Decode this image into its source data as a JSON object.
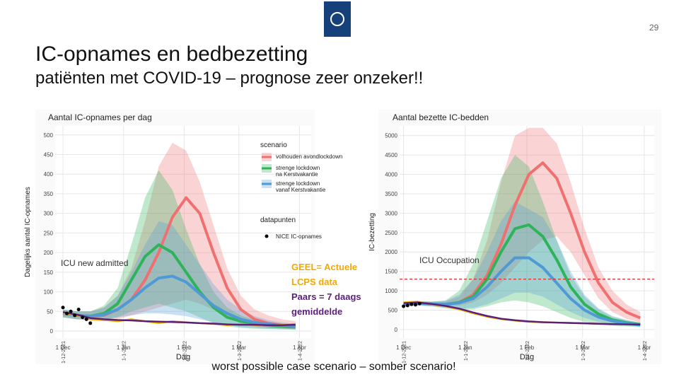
{
  "page": {
    "page_number": "29",
    "title": "IC-opnames en bedbezetting",
    "subtitle": "patiënten met COVID-19 – prognose zeer onzeker!!",
    "footer": "worst possible case scenario – somber scenario!"
  },
  "chart_data": [
    {
      "type": "line",
      "title": "Aantal IC-opnames per dag",
      "xlabel": "Dag",
      "ylabel": "Dagelijks aantal IC-opnames",
      "legend": true,
      "legend_title": "scenario",
      "legend_title_points": "datapunten",
      "annotations": [
        "ICU new admitted",
        "GEEL= Actuele\nLCPS data",
        "Paars = 7 daags\ngemiddelde"
      ],
      "xlim": [
        "2021-11-27",
        "2022-04-07"
      ],
      "ylim": [
        -18,
        523
      ],
      "xticks": [
        {
          "value": "2021-12-01",
          "label": "1 Dec",
          "alt_label": "1-12-2021"
        },
        {
          "value": "2022-01-01",
          "label": "1 Jan",
          "alt_label": "1-1-2022"
        },
        {
          "value": "2022-02-01",
          "label": "1 Feb",
          "alt_label": "1-2-2022"
        },
        {
          "value": "2022-03-01",
          "label": "1 Mar",
          "alt_label": "1-3-2022"
        },
        {
          "value": "2022-04-01",
          "label": "1 Apr",
          "alt_label": "1-4-2022"
        }
      ],
      "yticks": [
        0,
        50,
        100,
        150,
        200,
        250,
        300,
        350,
        400,
        450,
        500
      ],
      "grid": true,
      "x": [
        "2021-12-01",
        "2021-12-08",
        "2021-12-15",
        "2021-12-22",
        "2021-12-29",
        "2022-01-05",
        "2022-01-12",
        "2022-01-19",
        "2022-01-26",
        "2022-02-02",
        "2022-02-09",
        "2022-02-16",
        "2022-02-23",
        "2022-03-02",
        "2022-03-09",
        "2022-03-16",
        "2022-03-23",
        "2022-03-30"
      ],
      "series": [
        {
          "name": "volhouden avondlockdown",
          "color": "#f07070",
          "values": [
            45,
            40,
            38,
            40,
            55,
            80,
            130,
            200,
            290,
            340,
            300,
            200,
            110,
            55,
            30,
            20,
            15,
            12
          ],
          "upper": [
            55,
            50,
            50,
            60,
            90,
            160,
            280,
            420,
            480,
            460,
            380,
            270,
            160,
            90,
            55,
            40,
            30,
            25
          ],
          "lower": [
            35,
            30,
            28,
            25,
            30,
            40,
            50,
            60,
            70,
            80,
            70,
            55,
            35,
            20,
            12,
            8,
            6,
            5
          ]
        },
        {
          "name": "strenge lockdown\n na Kerstvakantie",
          "color": "#2fb35a",
          "values": [
            45,
            40,
            38,
            45,
            70,
            130,
            190,
            220,
            200,
            150,
            100,
            60,
            35,
            25,
            18,
            14,
            12,
            10
          ],
          "upper": [
            55,
            50,
            50,
            65,
            110,
            220,
            340,
            410,
            360,
            260,
            170,
            100,
            60,
            40,
            28,
            20,
            16,
            14
          ],
          "lower": [
            35,
            30,
            28,
            28,
            35,
            50,
            60,
            70,
            60,
            50,
            35,
            20,
            12,
            8,
            6,
            5,
            4,
            3
          ]
        },
        {
          "name": "strenge lockdown\n vanaf Kerstvakantie",
          "color": "#4f9ad6",
          "values": [
            45,
            40,
            38,
            42,
            55,
            80,
            110,
            135,
            140,
            125,
            95,
            65,
            45,
            30,
            22,
            18,
            15,
            12
          ],
          "upper": [
            55,
            50,
            50,
            60,
            90,
            150,
            220,
            280,
            270,
            220,
            170,
            120,
            80,
            55,
            38,
            28,
            22,
            18
          ],
          "lower": [
            35,
            30,
            28,
            30,
            35,
            40,
            45,
            45,
            42,
            38,
            30,
            22,
            15,
            10,
            8,
            6,
            5,
            4
          ]
        },
        {
          "color": "#f2b400",
          "values": [
            45,
            40,
            30,
            28,
            25,
            30,
            25,
            20,
            25,
            22,
            20,
            18,
            15,
            18,
            15,
            14,
            16,
            18
          ]
        },
        {
          "color": "#5b1f7a",
          "values": [
            48,
            42,
            33,
            30,
            28,
            27,
            25,
            24,
            23,
            22,
            20,
            19,
            17,
            16,
            16,
            15,
            15,
            16
          ]
        },
        {
          "name": "NICE IC-opnames",
          "color": "#000000",
          "x": [
            "2021-12-01",
            "2021-12-03",
            "2021-12-05",
            "2021-12-07",
            "2021-12-09",
            "2021-12-11",
            "2021-12-13",
            "2021-12-15"
          ],
          "values": [
            60,
            45,
            50,
            40,
            55,
            35,
            30,
            20
          ]
        }
      ]
    },
    {
      "type": "line",
      "title": "Aantal bezette IC-bedden",
      "xlabel": "Dag",
      "ylabel": "IC-bezetting",
      "legend": false,
      "annotations": [
        "ICU Occupation"
      ],
      "hline": 1300,
      "hline_color": "#e03030",
      "xlim": [
        "2021-11-29",
        "2022-04-06"
      ],
      "ylim": [
        -220,
        5250
      ],
      "xticks": [
        {
          "value": "2021-12-01",
          "label": "1 Dec",
          "alt_label": "1-12-2021"
        },
        {
          "value": "2022-01-01",
          "label": "1 Jan",
          "alt_label": "1-1-2022"
        },
        {
          "value": "2022-02-01",
          "label": "1 Feb",
          "alt_label": "1-2-2022"
        },
        {
          "value": "2022-03-01",
          "label": "1 Mar",
          "alt_label": "1-3-2022"
        },
        {
          "value": "2022-04-01",
          "label": "1 Apr",
          "alt_label": "1-4-2022"
        }
      ],
      "yticks": [
        0,
        500,
        1000,
        1500,
        2000,
        2500,
        3000,
        3500,
        4000,
        4500,
        5000
      ],
      "grid": true,
      "x": [
        "2021-12-01",
        "2021-12-08",
        "2021-12-15",
        "2021-12-22",
        "2021-12-29",
        "2022-01-05",
        "2022-01-12",
        "2022-01-19",
        "2022-01-26",
        "2022-02-02",
        "2022-02-09",
        "2022-02-16",
        "2022-02-23",
        "2022-03-02",
        "2022-03-09",
        "2022-03-16",
        "2022-03-23",
        "2022-03-30"
      ],
      "series": [
        {
          "color": "#f07070",
          "values": [
            650,
            680,
            660,
            640,
            700,
            900,
            1400,
            2200,
            3200,
            4000,
            4300,
            3900,
            3000,
            2000,
            1200,
            700,
            450,
            300
          ],
          "upper": [
            700,
            730,
            720,
            720,
            850,
            1300,
            2300,
            3800,
            5000,
            5200,
            5200,
            4800,
            3800,
            2600,
            1600,
            1000,
            650,
            450
          ],
          "lower": [
            620,
            640,
            620,
            600,
            620,
            700,
            900,
            1200,
            1600,
            2000,
            2300,
            2400,
            2000,
            1400,
            800,
            450,
            280,
            180
          ]
        },
        {
          "color": "#2fb35a",
          "values": [
            650,
            680,
            660,
            650,
            700,
            850,
            1300,
            2000,
            2600,
            2700,
            2400,
            1800,
            1100,
            650,
            400,
            250,
            180,
            130
          ],
          "upper": [
            700,
            730,
            720,
            750,
            1000,
            1700,
            2800,
            3900,
            4500,
            4200,
            3300,
            2300,
            1400,
            850,
            520,
            330,
            240,
            180
          ],
          "lower": [
            600,
            620,
            600,
            550,
            500,
            520,
            600,
            700,
            750,
            700,
            600,
            450,
            300,
            200,
            140,
            100,
            80,
            60
          ]
        },
        {
          "color": "#4f9ad6",
          "values": [
            650,
            680,
            660,
            650,
            690,
            800,
            1100,
            1500,
            1850,
            1850,
            1600,
            1200,
            800,
            500,
            320,
            220,
            160,
            120
          ],
          "upper": [
            700,
            730,
            720,
            740,
            900,
            1300,
            2000,
            2800,
            3300,
            3100,
            2900,
            2300,
            1500,
            900,
            550,
            350,
            250,
            180
          ],
          "lower": [
            600,
            620,
            600,
            560,
            540,
            560,
            650,
            800,
            950,
            950,
            850,
            650,
            450,
            300,
            200,
            140,
            100,
            80
          ]
        },
        {
          "color": "#f2b400",
          "values": [
            700,
            720,
            650,
            600,
            520,
            420,
            330,
            270,
            230,
            200,
            190,
            180,
            170,
            160,
            150,
            140,
            135,
            130
          ]
        },
        {
          "color": "#5b1f7a",
          "values": [
            680,
            700,
            660,
            610,
            540,
            440,
            350,
            280,
            240,
            210,
            190,
            180,
            170,
            160,
            150,
            140,
            135,
            130
          ]
        },
        {
          "color": "#000000",
          "x": [
            "2021-12-01",
            "2021-12-03",
            "2021-12-05",
            "2021-12-07",
            "2021-12-09"
          ],
          "values": [
            600,
            620,
            650,
            640,
            670
          ]
        }
      ]
    }
  ]
}
